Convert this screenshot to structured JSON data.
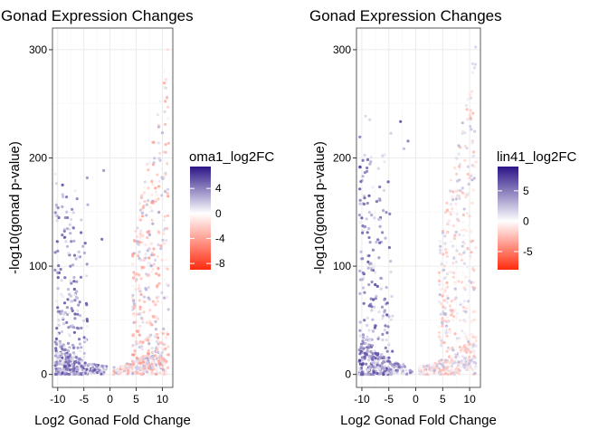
{
  "colors": {
    "low": "#ff2a0e",
    "mid": "#ffffff",
    "high": "#2b1486",
    "panel_border": "#333333",
    "grid_major": "#ebebeb",
    "grid_minor": "#f5f5f5"
  },
  "chart_data": [
    {
      "type": "scatter",
      "title": "Gonad Expression Changes",
      "xlabel": "Log2 Gonad Fold Change",
      "ylabel": "-log10(gonad p-value)",
      "xlim": [
        -11,
        12
      ],
      "ylim": [
        -12,
        320
      ],
      "xticks": [
        -10,
        -5,
        0,
        5,
        10
      ],
      "xtick_labels": [
        "-10",
        "-5",
        "0",
        "5",
        "10"
      ],
      "yticks": [
        0,
        100,
        200,
        300
      ],
      "ytick_labels": [
        "0",
        "100",
        "200",
        "300"
      ],
      "grid": true,
      "legend": {
        "title": "oma1_log2FC",
        "placement": "right",
        "range": [
          -9,
          7.5
        ],
        "ticks": [
          4,
          0,
          -4,
          -8
        ],
        "tick_labels": [
          "4",
          "0",
          "-4",
          "-8"
        ]
      },
      "points": {
        "left_x": [
          -10.5,
          -0.6
        ],
        "right_x": [
          0.6,
          11.2
        ],
        "n_left": 420,
        "n_right": 640,
        "left_max": 192,
        "right_max": 305,
        "left_color_range": [
          0.5,
          6.0
        ],
        "right_color_range": [
          -4.5,
          3.0
        ]
      }
    },
    {
      "type": "scatter",
      "title": "Gonad Expression Changes",
      "xlabel": "Log2 Gonad Fold Change",
      "ylabel": "-log10(gonad p-value)",
      "xlim": [
        -11,
        12
      ],
      "ylim": [
        -12,
        320
      ],
      "xticks": [
        -10,
        -5,
        0,
        5,
        10
      ],
      "xtick_labels": [
        "-10",
        "-5",
        "0",
        "5",
        "10"
      ],
      "yticks": [
        0,
        100,
        200,
        300
      ],
      "ytick_labels": [
        "0",
        "100",
        "200",
        "300"
      ],
      "grid": true,
      "legend": {
        "title": "lin41_log2FC",
        "placement": "right",
        "range": [
          -8,
          9
        ],
        "ticks": [
          5,
          0,
          -5
        ],
        "tick_labels": [
          "5",
          "0",
          "-5"
        ]
      },
      "points": {
        "left_x": [
          -10.5,
          -0.6
        ],
        "right_x": [
          0.6,
          11.2
        ],
        "n_left": 420,
        "n_right": 640,
        "left_max": 240,
        "right_max": 305,
        "left_color_range": [
          0.5,
          7.5
        ],
        "right_color_range": [
          -3.0,
          3.0
        ]
      }
    }
  ]
}
